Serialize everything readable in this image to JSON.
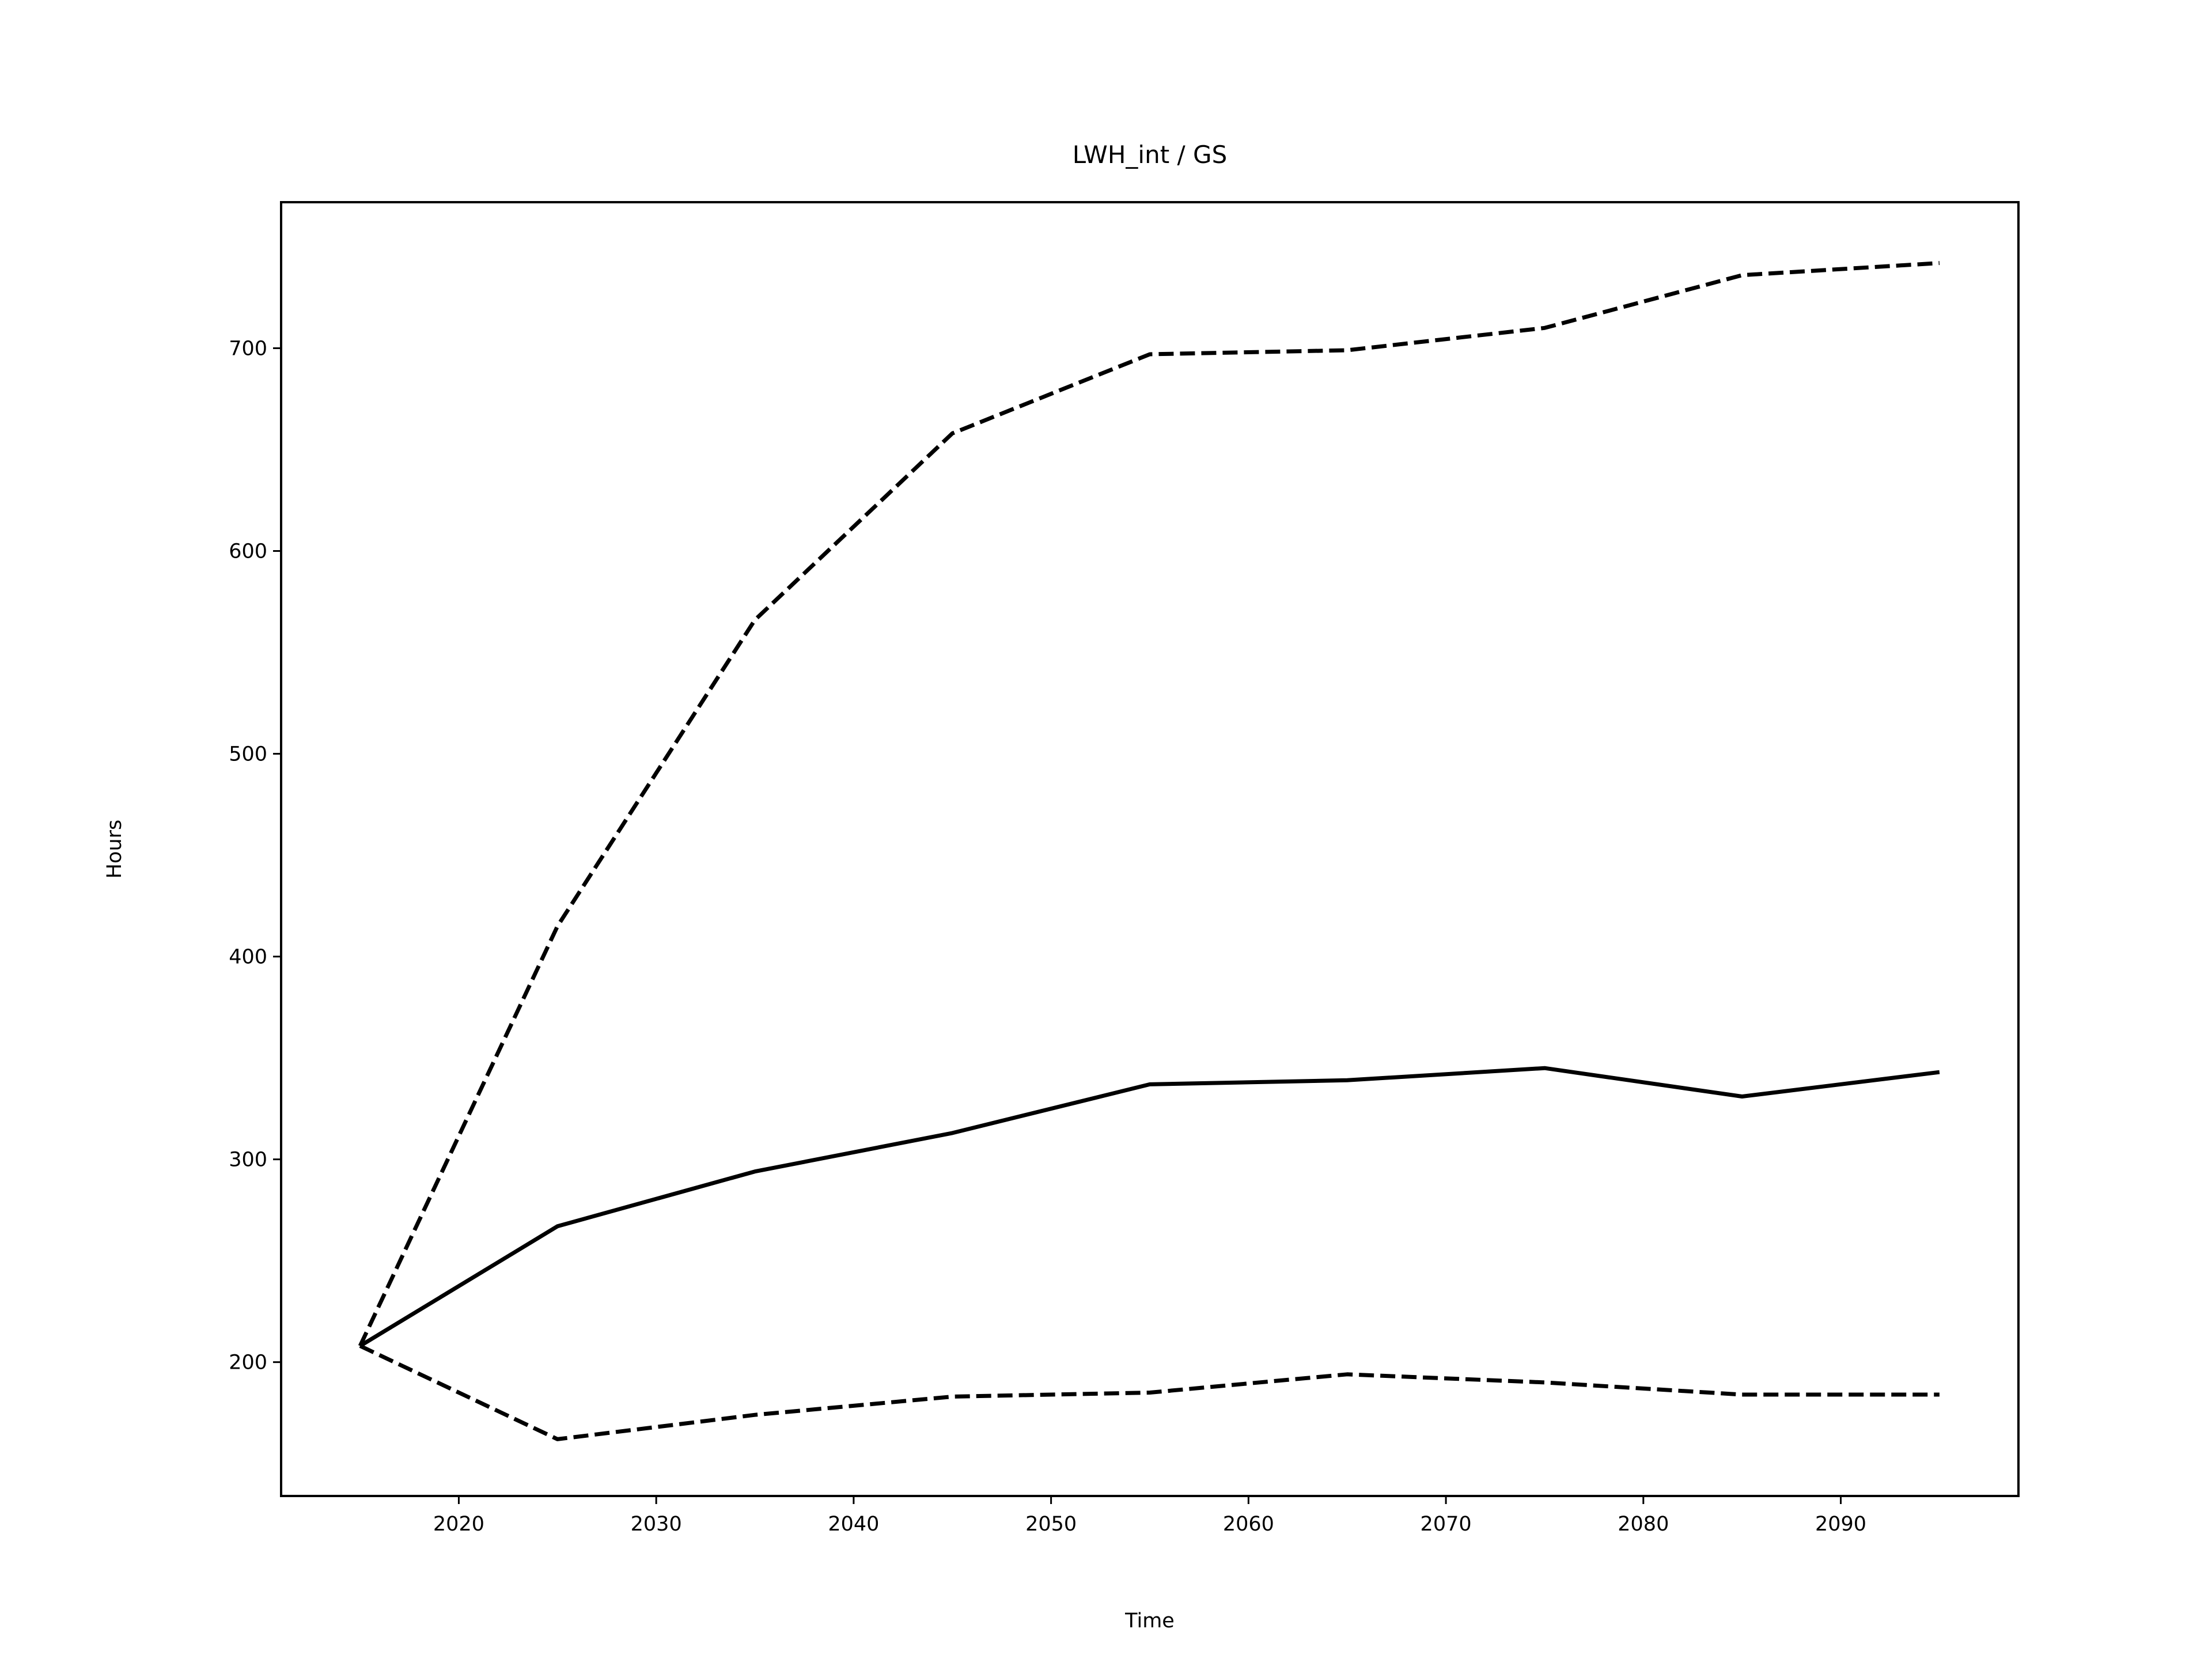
{
  "chart_data": {
    "type": "line",
    "title": "LWH_int / GS",
    "xlabel": "Time",
    "ylabel": "Hours",
    "xlim": [
      2011,
      2099
    ],
    "ylim": [
      134,
      772
    ],
    "xticks": [
      2020,
      2030,
      2040,
      2050,
      2060,
      2070,
      2080,
      2090
    ],
    "yticks": [
      200,
      300,
      400,
      500,
      600,
      700
    ],
    "grid": false,
    "x": [
      2015,
      2025,
      2035,
      2045,
      2055,
      2065,
      2075,
      2085,
      2095
    ],
    "series": [
      {
        "style": "solid",
        "color": "#000000",
        "values": [
          208,
          267,
          294,
          313,
          337,
          339,
          345,
          331,
          343
        ]
      },
      {
        "style": "dashed",
        "color": "#000000",
        "values": [
          208,
          415,
          566,
          658,
          697,
          699,
          710,
          736,
          742
        ]
      },
      {
        "style": "dashed",
        "color": "#000000",
        "values": [
          208,
          162,
          174,
          183,
          185,
          194,
          190,
          184,
          184
        ]
      }
    ]
  }
}
